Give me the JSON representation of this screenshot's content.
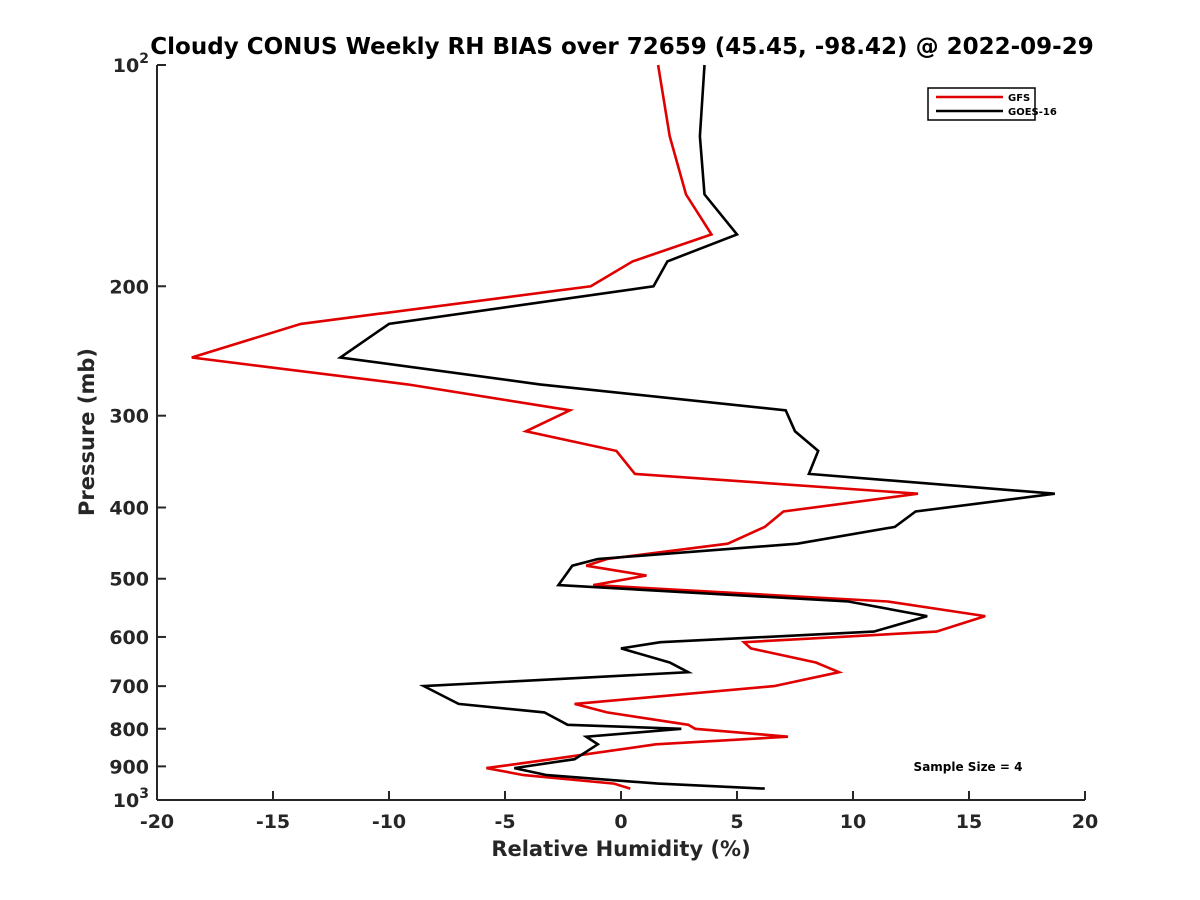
{
  "chart_data": {
    "type": "line",
    "title": "Cloudy CONUS Weekly RH BIAS over 72659 (45.45, -98.42) @ 2022-09-29",
    "xlabel": "Relative Humidity (%)",
    "ylabel": "Pressure (mb)",
    "xlim": [
      -20,
      20
    ],
    "ylim": [
      100,
      1000
    ],
    "y_scale": "log",
    "y_reversed": true,
    "x_ticks": [
      "-20",
      "-15",
      "-10",
      "-5",
      "0",
      "5",
      "10",
      "15",
      "20"
    ],
    "y_ticks": [
      {
        "value": 100,
        "label": "10",
        "sup": "2"
      },
      {
        "value": 200,
        "label": "200",
        "sup": ""
      },
      {
        "value": 300,
        "label": "300",
        "sup": ""
      },
      {
        "value": 400,
        "label": "400",
        "sup": ""
      },
      {
        "value": 500,
        "label": "500",
        "sup": ""
      },
      {
        "value": 600,
        "label": "600",
        "sup": ""
      },
      {
        "value": 700,
        "label": "700",
        "sup": ""
      },
      {
        "value": 800,
        "label": "800",
        "sup": ""
      },
      {
        "value": 900,
        "label": "900",
        "sup": ""
      },
      {
        "value": 1000,
        "label": "10",
        "sup": "3"
      }
    ],
    "legend_position": "top-right",
    "grid": false,
    "annotation": "Sample Size = 4",
    "series": [
      {
        "name": "GFS",
        "color": "#e00000",
        "points": [
          [
            1.6,
            100
          ],
          [
            2.1,
            125
          ],
          [
            2.8,
            150
          ],
          [
            3.9,
            170
          ],
          [
            0.5,
            185
          ],
          [
            -1.3,
            200
          ],
          [
            -13.8,
            225
          ],
          [
            -18.5,
            250
          ],
          [
            -9.2,
            272
          ],
          [
            -2.2,
            295
          ],
          [
            -4.1,
            315
          ],
          [
            -0.2,
            335
          ],
          [
            0.6,
            360
          ],
          [
            12.8,
            383
          ],
          [
            7.0,
            405
          ],
          [
            6.2,
            425
          ],
          [
            4.6,
            448
          ],
          [
            -0.6,
            470
          ],
          [
            -1.5,
            480
          ],
          [
            1.1,
            495
          ],
          [
            -1.2,
            510
          ],
          [
            11.5,
            537
          ],
          [
            15.7,
            562
          ],
          [
            13.6,
            590
          ],
          [
            5.3,
            610
          ],
          [
            5.6,
            622
          ],
          [
            8.4,
            650
          ],
          [
            9.4,
            670
          ],
          [
            6.6,
            700
          ],
          [
            -2.0,
            740
          ],
          [
            -0.6,
            760
          ],
          [
            2.9,
            790
          ],
          [
            3.2,
            800
          ],
          [
            7.2,
            820
          ],
          [
            1.5,
            840
          ],
          [
            -3.0,
            880
          ],
          [
            -5.8,
            905
          ],
          [
            -4.2,
            925
          ],
          [
            -0.3,
            950
          ],
          [
            0.4,
            965
          ]
        ]
      },
      {
        "name": "GOES-16",
        "color": "#000000",
        "points": [
          [
            3.6,
            100
          ],
          [
            3.4,
            125
          ],
          [
            3.6,
            150
          ],
          [
            5.0,
            170
          ],
          [
            2.0,
            185
          ],
          [
            1.4,
            200
          ],
          [
            -10.0,
            225
          ],
          [
            -12.1,
            250
          ],
          [
            -3.5,
            272
          ],
          [
            7.1,
            295
          ],
          [
            7.5,
            315
          ],
          [
            8.5,
            335
          ],
          [
            8.1,
            360
          ],
          [
            18.7,
            383
          ],
          [
            12.7,
            405
          ],
          [
            11.8,
            425
          ],
          [
            7.6,
            448
          ],
          [
            -1.0,
            470
          ],
          [
            -2.1,
            480
          ],
          [
            -2.4,
            495
          ],
          [
            -2.7,
            510
          ],
          [
            9.8,
            537
          ],
          [
            13.2,
            562
          ],
          [
            10.9,
            590
          ],
          [
            1.7,
            610
          ],
          [
            0.0,
            622
          ],
          [
            2.1,
            650
          ],
          [
            2.9,
            670
          ],
          [
            -8.5,
            700
          ],
          [
            -7.0,
            740
          ],
          [
            -3.3,
            760
          ],
          [
            -2.3,
            790
          ],
          [
            2.6,
            800
          ],
          [
            -1.5,
            820
          ],
          [
            -1.0,
            840
          ],
          [
            -2.0,
            880
          ],
          [
            -4.6,
            905
          ],
          [
            -3.2,
            925
          ],
          [
            1.6,
            950
          ],
          [
            6.2,
            965
          ]
        ]
      }
    ]
  }
}
